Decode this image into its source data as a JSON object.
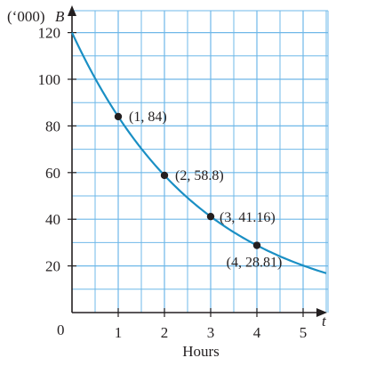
{
  "chart_data": {
    "type": "line",
    "ylabel_prefix": "(‘000)",
    "ylabel_var": "B",
    "xlabel": "Hours",
    "xaxis_var": "t",
    "origin_label": "0",
    "xlim": [
      0,
      5.5
    ],
    "ylim": [
      0,
      127
    ],
    "grid": true,
    "x_ticks": [
      "1",
      "2",
      "3",
      "4",
      "5"
    ],
    "y_ticks": [
      "20",
      "40",
      "60",
      "80",
      "100",
      "120"
    ],
    "function": {
      "initial": 120,
      "rate": 0.7
    },
    "points": [
      {
        "x": 1,
        "y": 84,
        "label": "(1, 84)"
      },
      {
        "x": 2,
        "y": 58.8,
        "label": "(2, 58.8)"
      },
      {
        "x": 3,
        "y": 41.16,
        "label": "(3, 41.16)"
      },
      {
        "x": 4,
        "y": 28.81,
        "label": "(4, 28.81)"
      }
    ],
    "colors": {
      "grid": "#6fb8e8",
      "curve": "#1a8fc4",
      "axis": "#231f20"
    }
  }
}
